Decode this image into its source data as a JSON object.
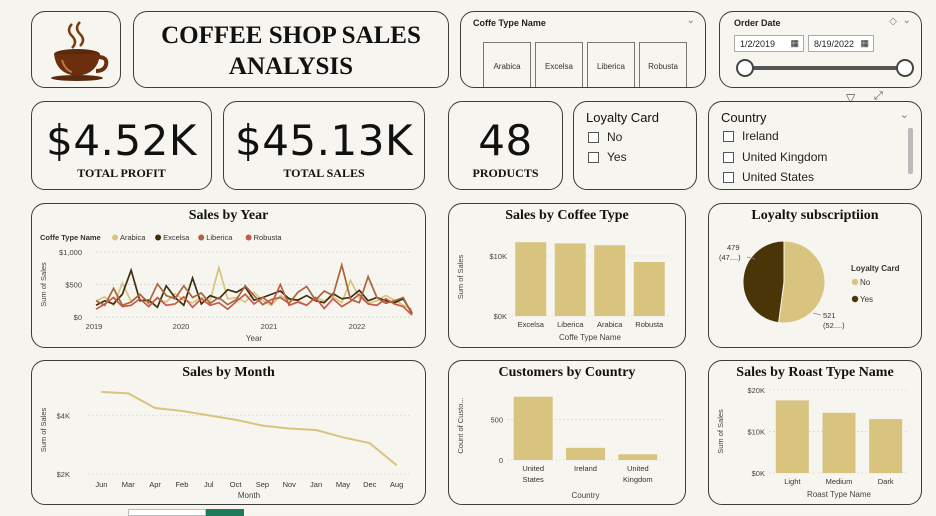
{
  "header": {
    "title_line1": "COFFEE SHOP SALES",
    "title_line2": "ANALYSIS"
  },
  "coffee_type_slicer": {
    "title": "Coffe Type Name",
    "options": [
      "Arabica",
      "Excelsa",
      "Liberica",
      "Robusta"
    ]
  },
  "order_date": {
    "title": "Order Date",
    "start": "1/2/2019",
    "end": "8/19/2022"
  },
  "kpis": {
    "profit": {
      "value": "$4.52K",
      "label": "TOTAL PROFIT"
    },
    "sales": {
      "value": "$45.13K",
      "label": "TOTAL SALES"
    },
    "products": {
      "value": "48",
      "label": "PRODUCTS"
    }
  },
  "loyalty_slicer": {
    "title": "Loyalty Card",
    "options": [
      "No",
      "Yes"
    ]
  },
  "country_slicer": {
    "title": "Country",
    "options": [
      "Ireland",
      "United Kingdom",
      "United States"
    ]
  },
  "colors": {
    "bar": "#d8c47f",
    "arabica": "#d8c47f",
    "excelsa": "#3d2f0d",
    "liberica": "#a8663d",
    "robusta": "#c8584a",
    "pie_yes": "#4a3508"
  },
  "chart_data": [
    {
      "type": "line",
      "title": "Sales by Year",
      "legend_title": "Coffe Type Name",
      "xlabel": "Year",
      "ylabel": "Sum of Sales",
      "x_ticks": [
        "2019",
        "2020",
        "2021",
        "2022"
      ],
      "y_ticks": [
        "$0",
        "$500",
        "$1,000"
      ],
      "ylim": [
        0,
        1000
      ],
      "series": [
        {
          "name": "Arabica",
          "values": [
            250,
            310,
            180,
            520,
            240,
            350,
            200,
            280,
            230,
            360,
            260,
            220,
            300,
            250,
            760,
            280,
            300,
            230,
            380,
            250,
            180,
            330,
            260,
            250,
            180,
            300,
            250,
            310,
            220,
            560,
            300,
            210,
            250,
            330,
            260,
            180,
            120
          ]
        },
        {
          "name": "Excelsa",
          "values": [
            180,
            250,
            200,
            350,
            720,
            250,
            260,
            150,
            480,
            300,
            180,
            600,
            200,
            330,
            280,
            420,
            380,
            460,
            260,
            300,
            350,
            400,
            280,
            260,
            330,
            250,
            220,
            360,
            280,
            300,
            410,
            250,
            300,
            250,
            220,
            280,
            60
          ]
        },
        {
          "name": "Liberica",
          "values": [
            250,
            180,
            440,
            180,
            230,
            350,
            220,
            510,
            330,
            280,
            480,
            300,
            370,
            210,
            300,
            190,
            270,
            480,
            330,
            190,
            270,
            300,
            210,
            380,
            470,
            260,
            400,
            330,
            800,
            270,
            220,
            620,
            300,
            210,
            250,
            300,
            40
          ]
        },
        {
          "name": "Robusta",
          "values": [
            120,
            200,
            300,
            160,
            180,
            280,
            160,
            300,
            180,
            200,
            310,
            150,
            280,
            180,
            220,
            120,
            240,
            350,
            200,
            300,
            200,
            500,
            180,
            230,
            180,
            300,
            130,
            280,
            160,
            240,
            350,
            200,
            180,
            280,
            200,
            160,
            30
          ]
        }
      ]
    },
    {
      "type": "bar",
      "title": "Sales by Coffee Type",
      "categories": [
        "Excelsa",
        "Liberica",
        "Arabica",
        "Robusta"
      ],
      "values": [
        12300,
        12100,
        11800,
        9000
      ],
      "xlabel": "Coffe Type Name",
      "ylabel": "Sum of Sales",
      "y_ticks": [
        "$0K",
        "$10K"
      ],
      "ylim": [
        0,
        13000
      ]
    },
    {
      "type": "pie",
      "title": "Loyalty subscriptiion",
      "legend_title": "Loyalty Card",
      "slices": [
        {
          "name": "No",
          "value": 521,
          "label": "521",
          "pct_label": "(52....)"
        },
        {
          "name": "Yes",
          "value": 479,
          "label": "479",
          "pct_label": "(47....)"
        }
      ]
    },
    {
      "type": "line",
      "title": "Sales by Month",
      "categories": [
        "Jun",
        "Mar",
        "Apr",
        "Feb",
        "Jul",
        "Oct",
        "Sep",
        "Nov",
        "Jan",
        "May",
        "Dec",
        "Aug"
      ],
      "values": [
        4800,
        4750,
        4250,
        4150,
        4000,
        3850,
        3650,
        3550,
        3500,
        3250,
        3050,
        2300
      ],
      "xlabel": "Month",
      "ylabel": "Sum of Sales",
      "y_ticks": [
        "$2K",
        "$4K"
      ],
      "ylim": [
        2000,
        5000
      ]
    },
    {
      "type": "bar",
      "title": "Customers by Country",
      "categories": [
        "United States",
        "Ireland",
        "United Kingdom"
      ],
      "values": [
        780,
        150,
        70
      ],
      "xlabel": "Country",
      "ylabel": "Count of Custo...",
      "y_ticks": [
        "0",
        "500"
      ],
      "ylim": [
        0,
        850
      ]
    },
    {
      "type": "bar",
      "title": "Sales by Roast Type Name",
      "categories": [
        "Light",
        "Medium",
        "Dark"
      ],
      "values": [
        17500,
        14500,
        13000
      ],
      "xlabel": "Roast Type Name",
      "ylabel": "Sum of Sales",
      "y_ticks": [
        "$0K",
        "$10K",
        "$20K"
      ],
      "ylim": [
        0,
        20000
      ]
    }
  ]
}
